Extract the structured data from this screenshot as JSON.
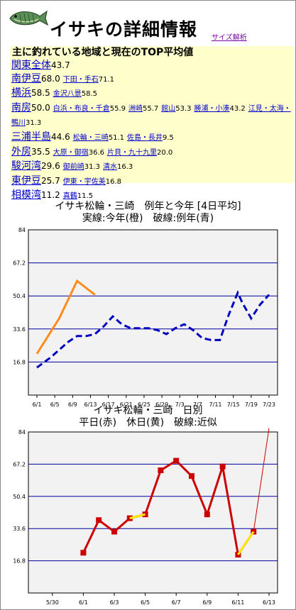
{
  "header": {
    "title": "イサキの詳細情報",
    "size_link": "サイズ解析"
  },
  "summary": {
    "heading": "主に釣れている地域と現在のTOP平均値",
    "rows": [
      {
        "region": "関東全体",
        "value": "43.7",
        "subs": []
      },
      {
        "region": "南伊豆",
        "value": "68.0",
        "subs": [
          {
            "name": "下田・手石",
            "value": "71.1"
          }
        ]
      },
      {
        "region": "横浜",
        "value": "58.5",
        "subs": [
          {
            "name": "金沢八景",
            "value": "58.5"
          }
        ]
      },
      {
        "region": "南房",
        "value": "50.0",
        "subs": [
          {
            "name": "白浜・布良・千倉",
            "value": "55.9"
          },
          {
            "name": "洲崎",
            "value": "55.7"
          },
          {
            "name": "館山",
            "value": "53.3"
          },
          {
            "name": "勝浦・小湊",
            "value": "43.2"
          },
          {
            "name": "江見・太海・鴨川",
            "value": "31.3"
          }
        ]
      },
      {
        "region": "三浦半島",
        "value": "44.6",
        "subs": [
          {
            "name": "松輪・三崎",
            "value": "51.1"
          },
          {
            "name": "佐島・長井",
            "value": "9.5"
          }
        ]
      },
      {
        "region": "外房",
        "value": "35.5",
        "subs": [
          {
            "name": "大原・御宿",
            "value": "36.6"
          },
          {
            "name": "片貝・九十九里",
            "value": "20.0"
          }
        ]
      },
      {
        "region": "駿河湾",
        "value": "29.6",
        "subs": [
          {
            "name": "御前崎",
            "value": "31.3"
          },
          {
            "name": "清水",
            "value": "16.3"
          }
        ]
      },
      {
        "region": "東伊豆",
        "value": "25.7",
        "subs": [
          {
            "name": "伊東・宇佐美",
            "value": "16.8"
          }
        ]
      },
      {
        "region": "相模湾",
        "value": "11.2",
        "subs": [
          {
            "name": "真鶴",
            "value": "11.5"
          }
        ]
      }
    ]
  },
  "chart_data": [
    {
      "type": "line",
      "title": "イサキ松輪・三崎　例年と今年 [4日平均]",
      "subtitle": "実線:今年(橙)　破線:例年(青)",
      "ylim": [
        0,
        84
      ],
      "yticks": [
        "16.8",
        "33.6",
        "50.4",
        "67.2",
        "84"
      ],
      "xlim": [
        0,
        52
      ],
      "xticks": [
        {
          "x": 0,
          "label": "6/1"
        },
        {
          "x": 4,
          "label": "6/5"
        },
        {
          "x": 8,
          "label": "6/9"
        },
        {
          "x": 12,
          "label": "6/13"
        },
        {
          "x": 16,
          "label": "6/17"
        },
        {
          "x": 20,
          "label": "6/21"
        },
        {
          "x": 24,
          "label": "6/25"
        },
        {
          "x": 28,
          "label": "6/29"
        },
        {
          "x": 32,
          "label": "7/3"
        },
        {
          "x": 36,
          "label": "7/7"
        },
        {
          "x": 40,
          "label": "7/11"
        },
        {
          "x": 44,
          "label": "7/15"
        },
        {
          "x": 48,
          "label": "7/19"
        },
        {
          "x": 52,
          "label": "7/23"
        }
      ],
      "series": [
        {
          "color": "#ff8c1a",
          "dashed": false,
          "points": [
            [
              0,
              21
            ],
            [
              5,
              39
            ],
            [
              9,
              58
            ],
            [
              13,
              51
            ]
          ]
        },
        {
          "color": "#0000c0",
          "dashed": true,
          "points": [
            [
              0,
              14
            ],
            [
              3,
              19
            ],
            [
              5,
              23
            ],
            [
              7,
              27
            ],
            [
              9,
              30
            ],
            [
              11,
              30
            ],
            [
              13,
              31
            ],
            [
              15,
              35
            ],
            [
              17,
              40
            ],
            [
              19,
              36
            ],
            [
              21,
              34
            ],
            [
              23,
              34
            ],
            [
              25,
              34
            ],
            [
              27,
              33
            ],
            [
              29,
              31
            ],
            [
              31,
              34
            ],
            [
              33,
              36
            ],
            [
              35,
              33
            ],
            [
              37,
              29
            ],
            [
              39,
              28
            ],
            [
              41,
              28
            ],
            [
              43,
              41
            ],
            [
              45,
              52
            ],
            [
              46,
              47
            ],
            [
              48,
              39
            ],
            [
              50,
              46
            ],
            [
              52,
              51
            ]
          ]
        }
      ]
    },
    {
      "type": "line",
      "title": "イサキ松輪・三崎　日別",
      "subtitle": "平日(赤)　休日(黄)　破線:近似",
      "ylim": [
        0,
        84
      ],
      "yticks": [
        "16.8",
        "33.6",
        "50.4",
        "67.2",
        "84"
      ],
      "xlim": [
        0,
        15
      ],
      "xticks": [
        {
          "x": 1,
          "label": "5/30"
        },
        {
          "x": 3,
          "label": "6/1"
        },
        {
          "x": 5,
          "label": "6/3"
        },
        {
          "x": 7,
          "label": "6/5"
        },
        {
          "x": 9,
          "label": "6/7"
        },
        {
          "x": 11,
          "label": "6/9"
        },
        {
          "x": 13,
          "label": "6/11"
        },
        {
          "x": 15,
          "label": "6/13"
        }
      ],
      "series": [
        {
          "color": "#cc0000",
          "dashed": false,
          "marker": true,
          "points": [
            [
              3,
              21
            ],
            [
              4,
              38
            ],
            [
              5,
              32
            ],
            [
              6,
              39
            ],
            [
              7,
              41
            ],
            [
              8,
              64
            ],
            [
              9,
              69
            ],
            [
              10,
              61
            ],
            [
              11,
              41
            ],
            [
              12,
              66
            ],
            [
              13,
              20
            ],
            [
              14,
              32
            ]
          ]
        },
        {
          "color": "#cc0000",
          "dashed": false,
          "marker": false,
          "points": [
            [
              14,
              32
            ],
            [
              15,
              86
            ]
          ]
        },
        {
          "color": "#ffea00",
          "dashed": false,
          "marker": false,
          "segments": [
            [
              [
                6,
                39
              ],
              [
                7,
                41
              ]
            ],
            [
              [
                13,
                20
              ],
              [
                14,
                32
              ]
            ]
          ]
        }
      ]
    }
  ]
}
